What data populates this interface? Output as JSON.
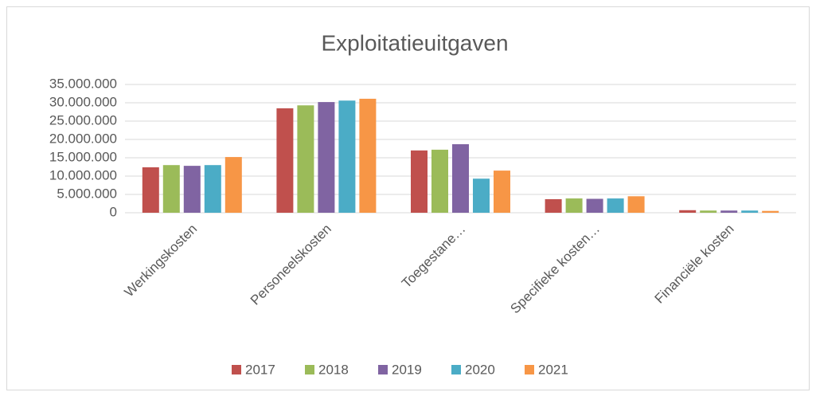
{
  "chart_data": {
    "type": "bar",
    "title": "Exploitatieuitgaven",
    "categories": [
      "Werkingskosten",
      "Personeelskosten",
      "Toegestane…",
      "Specifieke kosten…",
      "Financiële kosten"
    ],
    "series": [
      {
        "name": "2017",
        "color": "#c0504d",
        "values": [
          12400000,
          28500000,
          17000000,
          3700000,
          700000
        ]
      },
      {
        "name": "2018",
        "color": "#9bbb59",
        "values": [
          13000000,
          29300000,
          17200000,
          3900000,
          600000
        ]
      },
      {
        "name": "2019",
        "color": "#8064a2",
        "values": [
          12800000,
          30200000,
          18700000,
          3800000,
          600000
        ]
      },
      {
        "name": "2020",
        "color": "#4bacc6",
        "values": [
          13000000,
          30600000,
          9300000,
          3900000,
          600000
        ]
      },
      {
        "name": "2021",
        "color": "#f79646",
        "values": [
          15200000,
          31100000,
          11500000,
          4500000,
          500000
        ]
      }
    ],
    "ylim": [
      0,
      35000000
    ],
    "yticks": [
      0,
      {
        "value": 5000000,
        "label": "5.000.000"
      },
      {
        "value": 10000000,
        "label": "10.000.000"
      },
      {
        "value": 15000000,
        "label": "15.000.000"
      },
      {
        "value": 20000000,
        "label": "20.000.000"
      },
      {
        "value": 25000000,
        "label": "25.000.000"
      },
      {
        "value": 30000000,
        "label": "30.000.000"
      },
      {
        "value": 35000000,
        "label": "35.000.000"
      }
    ],
    "grid": true,
    "legend": "bottom"
  }
}
